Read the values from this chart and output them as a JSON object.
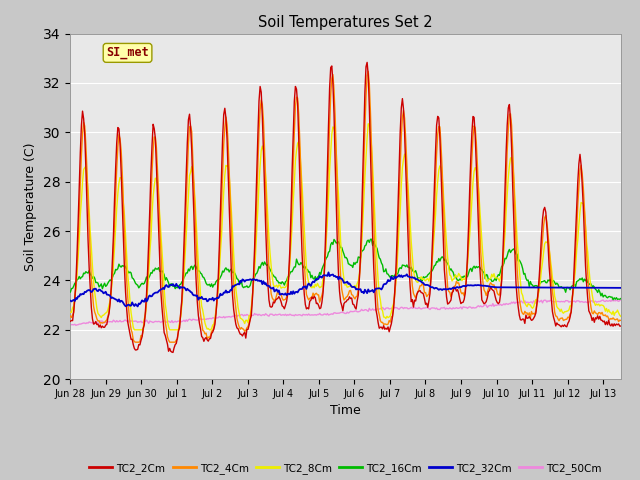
{
  "title": "Soil Temperatures Set 2",
  "xlabel": "Time",
  "ylabel": "Soil Temperature (C)",
  "ylim": [
    20,
    34
  ],
  "yticks": [
    20,
    22,
    24,
    26,
    28,
    30,
    32,
    34
  ],
  "annotation": "SI_met",
  "fig_bg": "#c8c8c8",
  "plot_bg": "#e8e8e8",
  "grid_color": "#ffffff",
  "colors": {
    "TC2_2Cm": "#cc0000",
    "TC2_4Cm": "#ff8800",
    "TC2_8Cm": "#eeee00",
    "TC2_16Cm": "#00bb00",
    "TC2_32Cm": "#0000cc",
    "TC2_50Cm": "#ee88dd"
  },
  "tick_labels": [
    "Jun 28",
    "Jun 29",
    "Jun 30",
    "Jul 1",
    "Jul 2",
    "Jul 3",
    "Jul 4",
    "Jul 5",
    "Jul 6",
    "Jul 7",
    "Jul 8",
    "Jul 9",
    "Jul 10",
    "Jul 11",
    "Jul 12",
    "Jul 13"
  ],
  "tick_positions": [
    0,
    1,
    2,
    3,
    4,
    5,
    6,
    7,
    8,
    9,
    10,
    11,
    12,
    13,
    14,
    15
  ],
  "xlim": [
    0,
    15.5
  ],
  "peak_times": [
    0.35,
    1.35,
    2.35,
    3.35,
    4.35,
    5.35,
    6.35,
    7.35,
    8.35,
    9.35,
    10.35,
    11.35,
    12.35,
    13.35,
    14.35
  ],
  "peak_2cm": [
    30.8,
    30.3,
    30.3,
    30.7,
    31.0,
    31.8,
    32.0,
    32.8,
    32.9,
    31.3,
    30.7,
    30.7,
    31.2,
    27.0,
    29.0
  ],
  "trough_times": [
    0.85,
    1.85,
    2.85,
    3.85,
    4.85,
    5.85,
    6.85,
    7.85,
    8.85,
    9.85,
    10.85,
    11.85,
    12.85,
    13.85,
    14.85
  ],
  "trough_2cm": [
    22.1,
    21.2,
    21.1,
    21.5,
    21.8,
    23.3,
    23.3,
    23.3,
    22.0,
    23.6,
    23.7,
    23.7,
    22.5,
    22.2,
    22.5
  ]
}
